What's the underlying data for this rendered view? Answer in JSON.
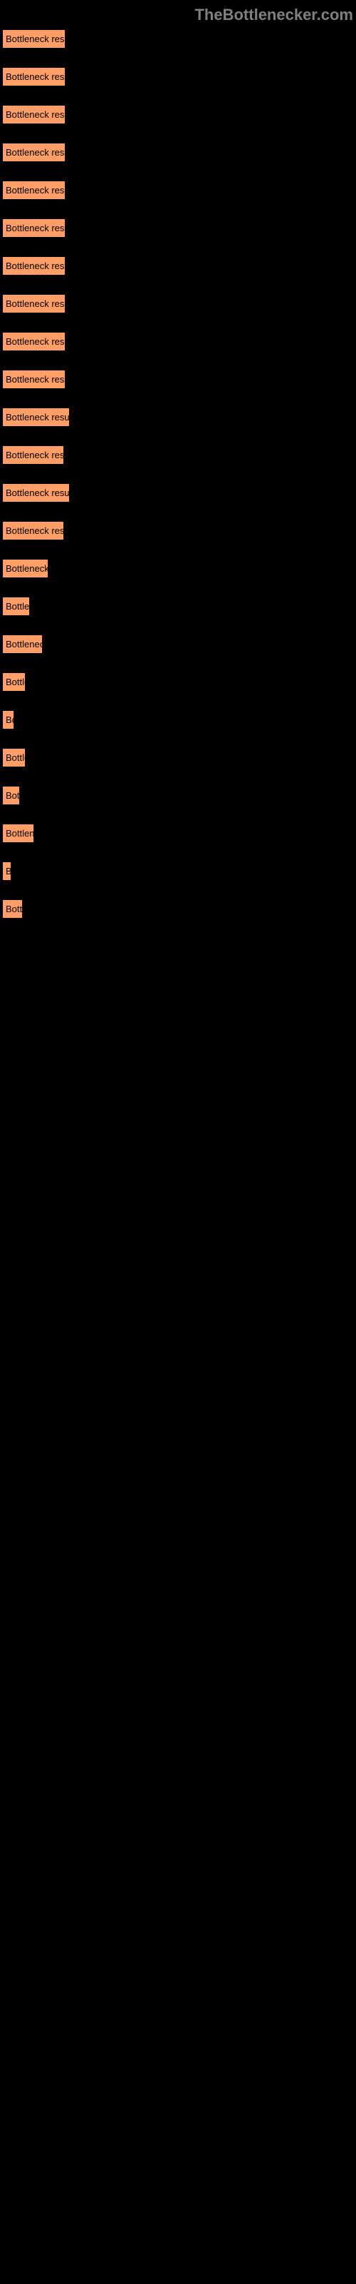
{
  "header": {
    "title": "TheBottlenecker.com"
  },
  "colors": {
    "background": "#000000",
    "box_bg": "#ff9e66",
    "box_text": "#000000",
    "header_text": "#808080"
  },
  "results": [
    {
      "label": "Bottleneck result",
      "width": 87
    },
    {
      "label": "Bottleneck result",
      "width": 87
    },
    {
      "label": "Bottleneck result",
      "width": 87
    },
    {
      "label": "Bottleneck result",
      "width": 87
    },
    {
      "label": "Bottleneck result",
      "width": 87
    },
    {
      "label": "Bottleneck result",
      "width": 87
    },
    {
      "label": "Bottleneck result",
      "width": 87
    },
    {
      "label": "Bottleneck result",
      "width": 87
    },
    {
      "label": "Bottleneck result",
      "width": 87
    },
    {
      "label": "Bottleneck result",
      "width": 87
    },
    {
      "label": "Bottleneck result",
      "width": 93
    },
    {
      "label": "Bottleneck resul",
      "width": 85
    },
    {
      "label": "Bottleneck result",
      "width": 93
    },
    {
      "label": "Bottleneck resul",
      "width": 85
    },
    {
      "label": "Bottleneck r",
      "width": 63
    },
    {
      "label": "Bottlen",
      "width": 37
    },
    {
      "label": "Bottleneck",
      "width": 55
    },
    {
      "label": "Bottle",
      "width": 31
    },
    {
      "label": "Bo",
      "width": 15
    },
    {
      "label": "Bottle",
      "width": 31
    },
    {
      "label": "Bott",
      "width": 23
    },
    {
      "label": "Bottlene",
      "width": 43
    },
    {
      "label": "B",
      "width": 11
    },
    {
      "label": "Bottl",
      "width": 27
    }
  ]
}
